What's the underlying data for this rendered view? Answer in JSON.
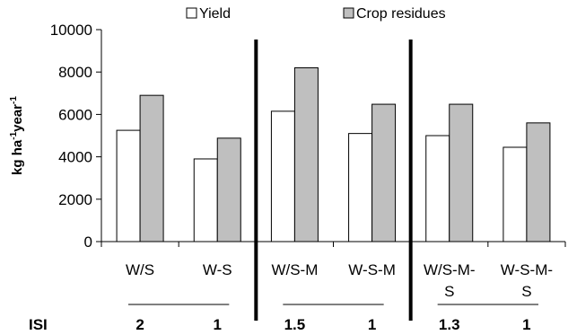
{
  "chart_data": {
    "type": "bar",
    "ylabel": "kg ha-1year-1",
    "ylabel_parts": [
      "kg ha",
      "-1",
      "year",
      "-1"
    ],
    "ylim": [
      0,
      10000
    ],
    "yticks": [
      0,
      2000,
      4000,
      6000,
      8000,
      10000
    ],
    "grid": false,
    "legend_position": "top",
    "categories": [
      {
        "lines": [
          "W/S"
        ]
      },
      {
        "lines": [
          "W-S"
        ]
      },
      {
        "lines": [
          "W/S-M"
        ]
      },
      {
        "lines": [
          "W-S-M"
        ]
      },
      {
        "lines": [
          "W/S-M-",
          "S"
        ]
      },
      {
        "lines": [
          "W-S-M-",
          "S"
        ]
      }
    ],
    "series": [
      {
        "name": "Yield",
        "color": "#ffffff",
        "values": [
          5250,
          3900,
          6150,
          5100,
          5000,
          4450
        ]
      },
      {
        "name": "Crop residues",
        "color": "#bfbfbf",
        "values": [
          6900,
          4880,
          8200,
          6480,
          6480,
          5600
        ]
      }
    ],
    "groups": [
      {
        "isi": "2",
        "members": [
          0
        ]
      },
      {
        "isi": "1",
        "members": [
          1
        ]
      },
      {
        "isi": "1.5",
        "members": [
          2
        ]
      },
      {
        "isi": "1",
        "members": [
          3
        ]
      },
      {
        "isi": "1.3",
        "members": [
          4
        ]
      },
      {
        "isi": "1",
        "members": [
          5
        ]
      }
    ],
    "isi_label": "ISI",
    "separators_after_category": [
      1,
      3
    ]
  }
}
